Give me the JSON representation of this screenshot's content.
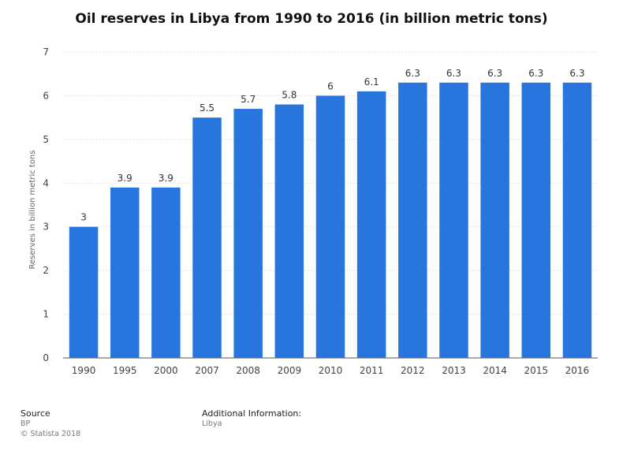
{
  "chart_data": {
    "type": "bar",
    "title": "Oil reserves in Libya from 1990 to 2016 (in billion metric tons)",
    "xlabel": "",
    "ylabel": "Reserves in billion metric tons",
    "categories": [
      "1990",
      "1995",
      "2000",
      "2007",
      "2008",
      "2009",
      "2010",
      "2011",
      "2012",
      "2013",
      "2014",
      "2015",
      "2016"
    ],
    "values": [
      3,
      3.9,
      3.9,
      5.5,
      5.7,
      5.8,
      6,
      6.1,
      6.3,
      6.3,
      6.3,
      6.3,
      6.3
    ],
    "value_labels": [
      "3",
      "3.9",
      "3.9",
      "5.5",
      "5.7",
      "5.8",
      "6",
      "6.1",
      "6.3",
      "6.3",
      "6.3",
      "6.3",
      "6.3"
    ],
    "ylim": [
      0,
      7
    ],
    "yticks": [
      "0",
      "1",
      "2",
      "3",
      "4",
      "5",
      "6",
      "7"
    ],
    "grid": true,
    "bar_color": "#2876dd"
  },
  "footer": {
    "source_label": "Source",
    "source_value": "BP",
    "copyright": "© Statista 2018",
    "additional_label": "Additional Information:",
    "additional_value": "Libya"
  }
}
